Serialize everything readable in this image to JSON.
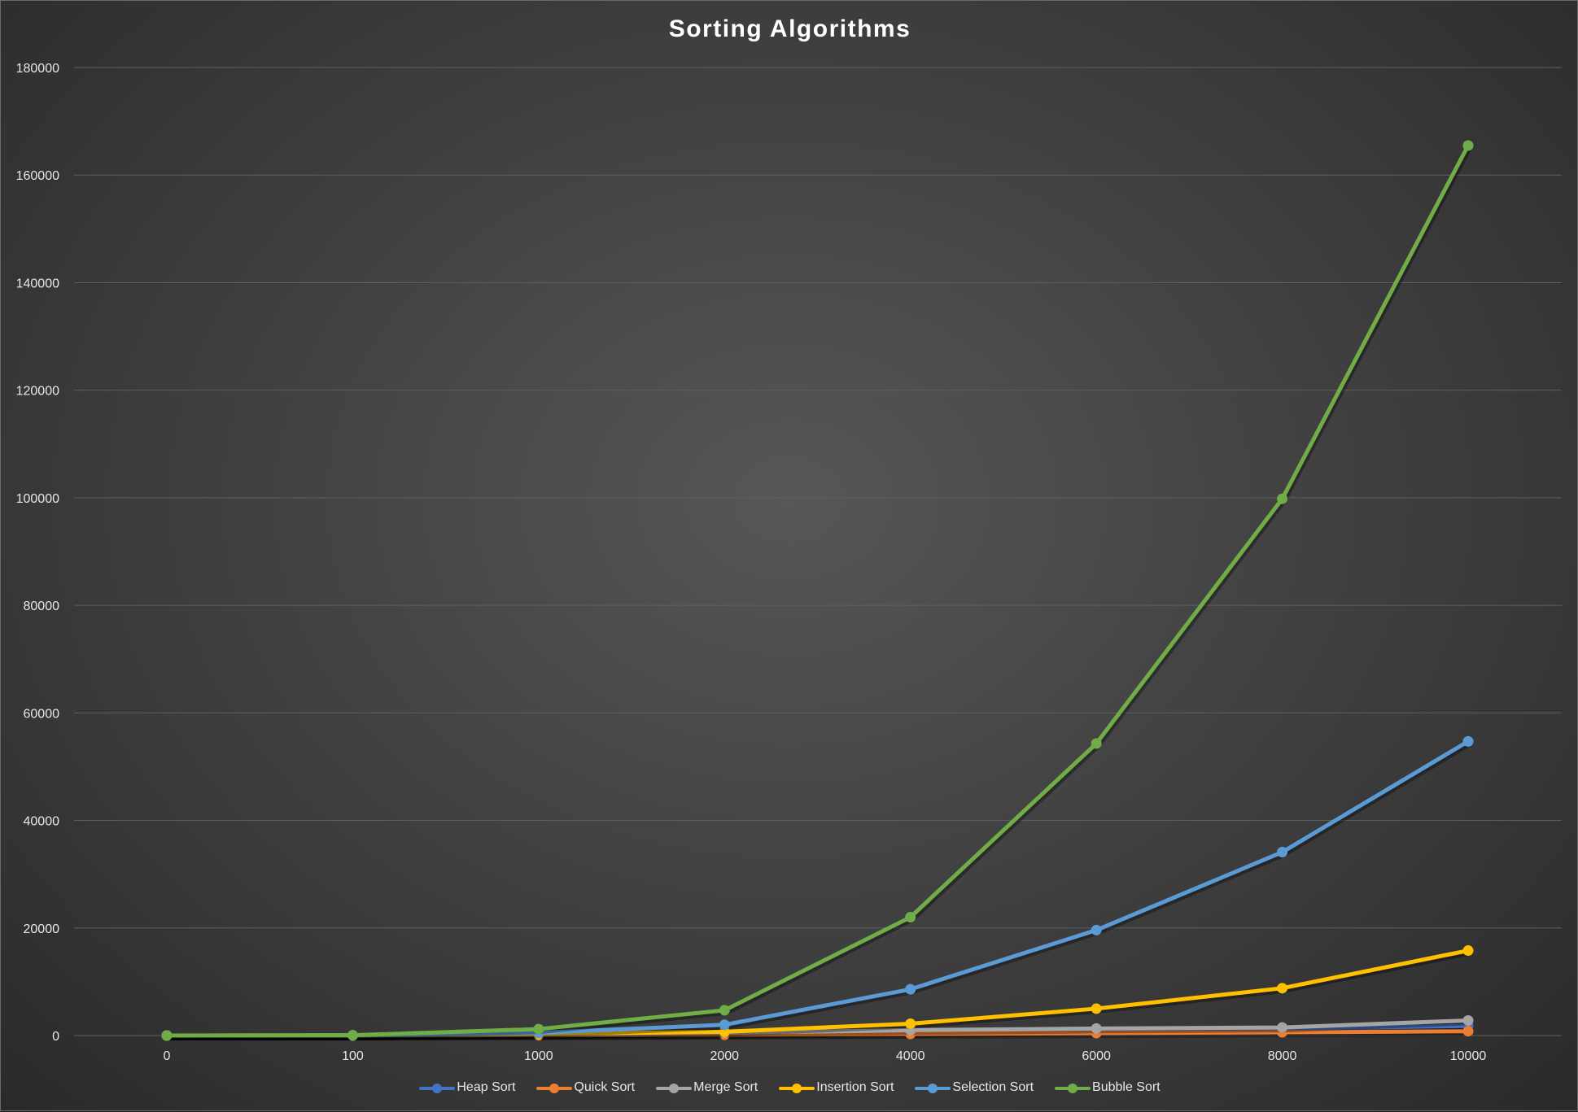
{
  "chart_data": {
    "type": "line",
    "title": "Sorting Algorithms",
    "categories": [
      "0",
      "100",
      "1000",
      "2000",
      "4000",
      "6000",
      "8000",
      "10000"
    ],
    "ylim": [
      0,
      180000
    ],
    "yticks": [
      0,
      20000,
      40000,
      60000,
      80000,
      100000,
      120000,
      140000,
      160000,
      180000
    ],
    "grid": true,
    "legend_position": "bottom",
    "series": [
      {
        "name": "Heap Sort",
        "color": "#4472c4",
        "values": [
          0,
          5,
          100,
          250,
          550,
          900,
          1300,
          1800
        ]
      },
      {
        "name": "Quick Sort",
        "color": "#ed7d31",
        "values": [
          0,
          3,
          60,
          150,
          300,
          450,
          600,
          800
        ]
      },
      {
        "name": "Merge Sort",
        "color": "#a5a5a5",
        "values": [
          0,
          10,
          200,
          500,
          1000,
          1300,
          1500,
          2800
        ]
      },
      {
        "name": "Insertion Sort",
        "color": "#ffc000",
        "values": [
          0,
          20,
          300,
          700,
          2200,
          5000,
          8800,
          15800
        ]
      },
      {
        "name": "Selection Sort",
        "color": "#5b9bd5",
        "values": [
          0,
          30,
          500,
          2000,
          8600,
          19600,
          34100,
          54700
        ]
      },
      {
        "name": "Bubble Sort",
        "color": "#70ad47",
        "values": [
          0,
          50,
          1200,
          4700,
          22000,
          54300,
          99800,
          165500
        ]
      }
    ]
  }
}
